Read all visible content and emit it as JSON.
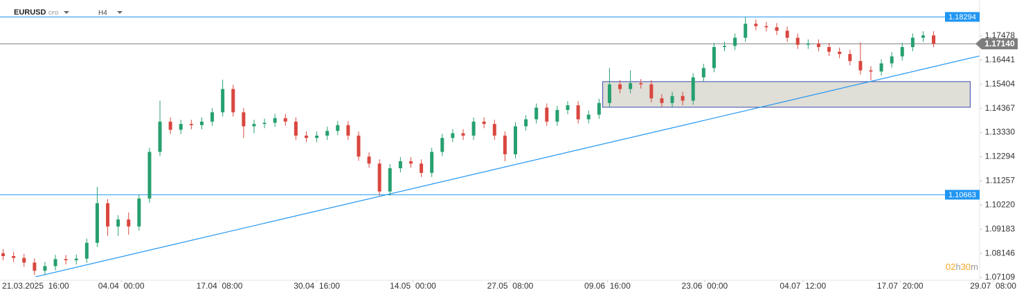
{
  "chart_data": {
    "type": "candlestick",
    "symbol": "EURUSD",
    "instrument_type": "CFD",
    "timeframe": "H4",
    "up_color": "#26a06f",
    "down_color": "#d9473f",
    "ylim": [
      1.0699,
      1.1902
    ],
    "xlim": [
      -0.3,
      93.4
    ],
    "yticks": [
      1.17478,
      1.16441,
      1.15404,
      1.14367,
      {
        "value": 1.1333,
        "label": "1.13330"
      },
      1.12294,
      1.11257,
      {
        "value": 1.1022,
        "label": "1.10220"
      },
      1.09183,
      1.08146,
      1.07109
    ],
    "xticks": [
      {
        "value": 3.1,
        "label": "21.03.2025  16:00"
      },
      {
        "value": 11.3,
        "label": "04.04  00:00"
      },
      {
        "value": 20.7,
        "label": "17.04  08:00"
      },
      {
        "value": 30.0,
        "label": "30.04  16:00"
      },
      {
        "value": 39.2,
        "label": "14.05  00:00"
      },
      {
        "value": 48.5,
        "label": "27.05  08:00"
      },
      {
        "value": 57.8,
        "label": "09.06  16:00"
      },
      {
        "value": 67.1,
        "label": "23.06  00:00"
      },
      {
        "value": 76.5,
        "label": "04.07  12:00"
      },
      {
        "value": 85.8,
        "label": "17.07  20:00"
      },
      {
        "value": 94.7,
        "label": "29.07  08:00"
      }
    ],
    "open": [
      1.0815,
      1.0803,
      1.0795,
      1.0775,
      1.074,
      1.076,
      1.079,
      1.0785,
      1.0792,
      1.086,
      1.103,
      1.093,
      1.096,
      1.093,
      1.105,
      1.125,
      1.138,
      1.1345,
      1.137,
      1.1365,
      1.138,
      1.142,
      1.152,
      1.142,
      1.136,
      1.137,
      1.1375,
      1.1395,
      1.138,
      1.132,
      1.131,
      1.132,
      1.134,
      1.1365,
      1.132,
      1.123,
      1.12,
      1.108,
      1.118,
      1.121,
      1.12,
      1.116,
      1.125,
      1.131,
      1.133,
      1.132,
      1.138,
      1.137,
      1.132,
      1.124,
      1.136,
      1.139,
      1.144,
      1.138,
      1.143,
      1.145,
      1.139,
      1.141,
      1.146,
      1.154,
      1.152,
      1.1545,
      1.154,
      1.148,
      1.146,
      1.149,
      1.147,
      1.157,
      1.161,
      1.17,
      1.1705,
      1.174,
      1.18,
      1.179,
      1.1785,
      1.177,
      1.174,
      1.171,
      1.1715,
      1.17,
      1.168,
      1.167,
      1.164,
      1.16,
      1.1595,
      1.163,
      1.166,
      1.17,
      1.174,
      1.175
    ],
    "high": [
      1.0833,
      1.0821,
      1.0813,
      1.0793,
      1.0778,
      1.0808,
      1.0808,
      1.081,
      1.0878,
      1.11,
      1.1048,
      1.0978,
      1.099,
      1.1068,
      1.1268,
      1.147,
      1.1398,
      1.1388,
      1.1388,
      1.1398,
      1.1438,
      1.156,
      1.1538,
      1.1438,
      1.1388,
      1.1393,
      1.1413,
      1.1413,
      1.1398,
      1.1338,
      1.1338,
      1.1358,
      1.1383,
      1.1383,
      1.1338,
      1.1248,
      1.1218,
      1.1198,
      1.1228,
      1.1228,
      1.1218,
      1.1268,
      1.1328,
      1.1348,
      1.1348,
      1.1398,
      1.1398,
      1.1388,
      1.1338,
      1.1378,
      1.1408,
      1.1458,
      1.1458,
      1.1448,
      1.1468,
      1.1468,
      1.1428,
      1.1478,
      1.161,
      1.1558,
      1.16,
      1.1563,
      1.1558,
      1.1498,
      1.1508,
      1.1508,
      1.1588,
      1.1628,
      1.1718,
      1.1723,
      1.1758,
      1.183,
      1.1818,
      1.1808,
      1.1803,
      1.1788,
      1.1758,
      1.1733,
      1.1733,
      1.1718,
      1.1698,
      1.1688,
      1.172,
      1.1618,
      1.1648,
      1.1678,
      1.1718,
      1.1758,
      1.1768,
      1.1768
    ],
    "low": [
      1.0785,
      1.0777,
      1.0757,
      1.0722,
      1.0722,
      1.0742,
      1.0767,
      1.0767,
      1.0774,
      1.0842,
      1.089,
      1.089,
      1.0895,
      1.0912,
      1.1032,
      1.1232,
      1.1327,
      1.1327,
      1.1347,
      1.1347,
      1.1362,
      1.1402,
      1.1402,
      1.131,
      1.133,
      1.1352,
      1.1357,
      1.1362,
      1.1302,
      1.1292,
      1.1292,
      1.1302,
      1.1322,
      1.1302,
      1.1212,
      1.1182,
      1.1062,
      1.1062,
      1.1162,
      1.1182,
      1.1142,
      1.1142,
      1.1232,
      1.1292,
      1.1302,
      1.1302,
      1.1352,
      1.1302,
      1.121,
      1.1222,
      1.1342,
      1.1372,
      1.1362,
      1.1362,
      1.1412,
      1.1372,
      1.1372,
      1.1392,
      1.1442,
      1.1502,
      1.1502,
      1.1522,
      1.1462,
      1.1442,
      1.1442,
      1.145,
      1.1452,
      1.1552,
      1.1592,
      1.1682,
      1.1687,
      1.1722,
      1.1772,
      1.1767,
      1.1752,
      1.1722,
      1.1692,
      1.1692,
      1.1682,
      1.1662,
      1.1652,
      1.1622,
      1.1582,
      1.1557,
      1.1577,
      1.1612,
      1.1642,
      1.1682,
      1.1722,
      1.17
    ],
    "close": [
      1.0803,
      1.0795,
      1.0775,
      1.074,
      1.076,
      1.079,
      1.0785,
      1.0792,
      1.086,
      1.103,
      1.093,
      1.096,
      1.093,
      1.105,
      1.125,
      1.138,
      1.1345,
      1.137,
      1.1365,
      1.138,
      1.142,
      1.152,
      1.142,
      1.136,
      1.137,
      1.1375,
      1.1395,
      1.138,
      1.132,
      1.131,
      1.132,
      1.134,
      1.1365,
      1.132,
      1.123,
      1.12,
      1.108,
      1.118,
      1.121,
      1.12,
      1.116,
      1.125,
      1.131,
      1.133,
      1.132,
      1.138,
      1.137,
      1.132,
      1.124,
      1.136,
      1.139,
      1.144,
      1.138,
      1.143,
      1.145,
      1.139,
      1.141,
      1.146,
      1.154,
      1.152,
      1.1545,
      1.154,
      1.148,
      1.146,
      1.149,
      1.147,
      1.157,
      1.161,
      1.17,
      1.1705,
      1.174,
      1.18,
      1.179,
      1.1785,
      1.177,
      1.174,
      1.171,
      1.1715,
      1.17,
      1.168,
      1.167,
      1.164,
      1.16,
      1.1595,
      1.163,
      1.166,
      1.17,
      1.174,
      1.175,
      1.1714
    ],
    "levels": [
      {
        "value": 1.18294,
        "label": "1.18294",
        "color": "#2196f3"
      },
      {
        "value": 1.10663,
        "label": "1.10663",
        "color": "#2196f3"
      }
    ],
    "current_price": {
      "value": 1.1714,
      "label": "1.17140",
      "color": "#7d7d7d"
    },
    "trendline": {
      "x": [
        3.1,
        93.4
      ],
      "y": [
        1.0714,
        1.1662
      ],
      "color": "#2196f3"
    },
    "zone": {
      "x": [
        57.35,
        92.5
      ],
      "y": [
        1.14418,
        1.15517
      ],
      "color": "#3949ab"
    },
    "countdown": [
      "02",
      "h",
      "30",
      "m"
    ]
  }
}
